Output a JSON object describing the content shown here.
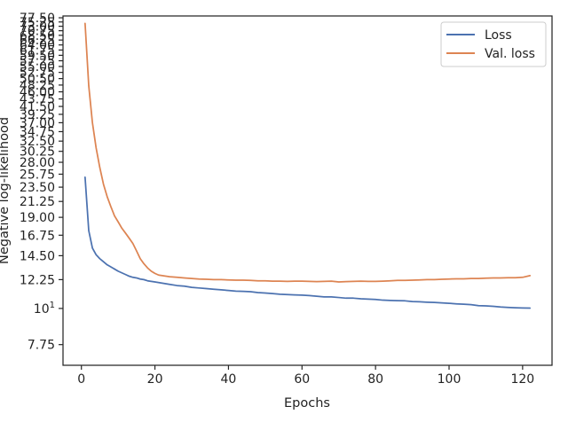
{
  "chart_data": {
    "type": "line",
    "title": "",
    "xlabel": "Epochs",
    "ylabel": "Negative log-likelihood",
    "xlim": [
      -5,
      128
    ],
    "ylim": [
      6.7,
      78.5
    ],
    "yscale": "log",
    "grid": false,
    "legend_position": "top-right",
    "x_ticks": [
      {
        "value": 0,
        "label": "0"
      },
      {
        "value": 20,
        "label": "20"
      },
      {
        "value": 40,
        "label": "40"
      },
      {
        "value": 60,
        "label": "60"
      },
      {
        "value": 80,
        "label": "80"
      },
      {
        "value": 100,
        "label": "100"
      },
      {
        "value": 120,
        "label": "120"
      }
    ],
    "y_ticks": [
      {
        "value": 7.75,
        "label": "7.75"
      },
      {
        "value": 10,
        "label": "10¹"
      },
      {
        "value": 12.25,
        "label": "12.25"
      },
      {
        "value": 14.5,
        "label": "14.50"
      },
      {
        "value": 16.75,
        "label": "16.75"
      },
      {
        "value": 19.0,
        "label": "19.00"
      },
      {
        "value": 21.25,
        "label": "21.25"
      },
      {
        "value": 23.5,
        "label": "23.50"
      },
      {
        "value": 25.75,
        "label": "25.75"
      },
      {
        "value": 28.0,
        "label": "28.00"
      },
      {
        "value": 30.25,
        "label": "30.25"
      },
      {
        "value": 32.5,
        "label": "32.50"
      },
      {
        "value": 34.75,
        "label": "34.75"
      },
      {
        "value": 37.0,
        "label": "37.00"
      },
      {
        "value": 39.25,
        "label": "39.25"
      },
      {
        "value": 41.5,
        "label": "41.50"
      },
      {
        "value": 43.75,
        "label": "43.75"
      },
      {
        "value": 46.0,
        "label": "46.00"
      },
      {
        "value": 48.25,
        "label": "48.25"
      },
      {
        "value": 50.5,
        "label": "50.50"
      },
      {
        "value": 52.75,
        "label": "52.75"
      },
      {
        "value": 55.0,
        "label": "55.00"
      },
      {
        "value": 57.25,
        "label": "57.25"
      },
      {
        "value": 59.5,
        "label": "59.50"
      },
      {
        "value": 61.75,
        "label": "61.75"
      },
      {
        "value": 64.0,
        "label": "64.00"
      },
      {
        "value": 66.25,
        "label": "66.25"
      },
      {
        "value": 68.5,
        "label": "68.50"
      },
      {
        "value": 70.75,
        "label": "70.75"
      },
      {
        "value": 73.0,
        "label": "73.00"
      },
      {
        "value": 75.25,
        "label": "75.25"
      },
      {
        "value": 77.5,
        "label": "77.50"
      }
    ],
    "series": [
      {
        "name": "Loss",
        "color": "#4c72b0",
        "points": [
          [
            1,
            25.2
          ],
          [
            2,
            17.3
          ],
          [
            3,
            15.3
          ],
          [
            4,
            14.6
          ],
          [
            5,
            14.2
          ],
          [
            6,
            13.9
          ],
          [
            7,
            13.6
          ],
          [
            8,
            13.4
          ],
          [
            9,
            13.2
          ],
          [
            10,
            13.0
          ],
          [
            11,
            12.85
          ],
          [
            12,
            12.7
          ],
          [
            13,
            12.55
          ],
          [
            14,
            12.45
          ],
          [
            15,
            12.4
          ],
          [
            16,
            12.3
          ],
          [
            17,
            12.25
          ],
          [
            18,
            12.15
          ],
          [
            19,
            12.1
          ],
          [
            20,
            12.05
          ],
          [
            22,
            11.95
          ],
          [
            24,
            11.85
          ],
          [
            26,
            11.75
          ],
          [
            28,
            11.7
          ],
          [
            30,
            11.6
          ],
          [
            32,
            11.55
          ],
          [
            34,
            11.5
          ],
          [
            36,
            11.45
          ],
          [
            38,
            11.4
          ],
          [
            40,
            11.35
          ],
          [
            42,
            11.3
          ],
          [
            44,
            11.28
          ],
          [
            46,
            11.25
          ],
          [
            48,
            11.18
          ],
          [
            50,
            11.15
          ],
          [
            52,
            11.1
          ],
          [
            54,
            11.05
          ],
          [
            56,
            11.03
          ],
          [
            58,
            11.0
          ],
          [
            60,
            10.98
          ],
          [
            62,
            10.95
          ],
          [
            64,
            10.9
          ],
          [
            66,
            10.85
          ],
          [
            68,
            10.85
          ],
          [
            70,
            10.8
          ],
          [
            72,
            10.75
          ],
          [
            74,
            10.75
          ],
          [
            76,
            10.7
          ],
          [
            78,
            10.68
          ],
          [
            80,
            10.65
          ],
          [
            82,
            10.6
          ],
          [
            84,
            10.58
          ],
          [
            86,
            10.56
          ],
          [
            88,
            10.55
          ],
          [
            90,
            10.5
          ],
          [
            92,
            10.48
          ],
          [
            94,
            10.45
          ],
          [
            96,
            10.43
          ],
          [
            98,
            10.4
          ],
          [
            100,
            10.37
          ],
          [
            102,
            10.33
          ],
          [
            104,
            10.3
          ],
          [
            106,
            10.27
          ],
          [
            108,
            10.2
          ],
          [
            110,
            10.18
          ],
          [
            112,
            10.15
          ],
          [
            114,
            10.1
          ],
          [
            116,
            10.07
          ],
          [
            118,
            10.05
          ],
          [
            120,
            10.03
          ],
          [
            122,
            10.02
          ]
        ]
      },
      {
        "name": "Val. loss",
        "color": "#dd8452",
        "points": [
          [
            1,
            74.5
          ],
          [
            2,
            48.0
          ],
          [
            3,
            37.0
          ],
          [
            4,
            31.0
          ],
          [
            5,
            27.0
          ],
          [
            6,
            24.0
          ],
          [
            7,
            22.0
          ],
          [
            8,
            20.5
          ],
          [
            9,
            19.2
          ],
          [
            10,
            18.4
          ],
          [
            11,
            17.6
          ],
          [
            12,
            17.0
          ],
          [
            13,
            16.4
          ],
          [
            14,
            15.8
          ],
          [
            15,
            15.0
          ],
          [
            16,
            14.2
          ],
          [
            17,
            13.7
          ],
          [
            18,
            13.3
          ],
          [
            19,
            13.0
          ],
          [
            20,
            12.8
          ],
          [
            21,
            12.65
          ],
          [
            22,
            12.6
          ],
          [
            23,
            12.55
          ],
          [
            24,
            12.5
          ],
          [
            26,
            12.45
          ],
          [
            28,
            12.4
          ],
          [
            30,
            12.35
          ],
          [
            32,
            12.3
          ],
          [
            34,
            12.28
          ],
          [
            36,
            12.25
          ],
          [
            38,
            12.25
          ],
          [
            40,
            12.22
          ],
          [
            42,
            12.2
          ],
          [
            44,
            12.2
          ],
          [
            46,
            12.18
          ],
          [
            48,
            12.15
          ],
          [
            50,
            12.15
          ],
          [
            52,
            12.12
          ],
          [
            54,
            12.12
          ],
          [
            56,
            12.1
          ],
          [
            58,
            12.12
          ],
          [
            60,
            12.12
          ],
          [
            62,
            12.1
          ],
          [
            64,
            12.08
          ],
          [
            66,
            12.1
          ],
          [
            68,
            12.12
          ],
          [
            70,
            12.05
          ],
          [
            72,
            12.08
          ],
          [
            74,
            12.1
          ],
          [
            76,
            12.12
          ],
          [
            78,
            12.1
          ],
          [
            80,
            12.1
          ],
          [
            82,
            12.12
          ],
          [
            84,
            12.15
          ],
          [
            86,
            12.18
          ],
          [
            88,
            12.18
          ],
          [
            90,
            12.2
          ],
          [
            92,
            12.22
          ],
          [
            94,
            12.25
          ],
          [
            96,
            12.25
          ],
          [
            98,
            12.28
          ],
          [
            100,
            12.3
          ],
          [
            102,
            12.32
          ],
          [
            104,
            12.32
          ],
          [
            106,
            12.35
          ],
          [
            108,
            12.35
          ],
          [
            110,
            12.38
          ],
          [
            112,
            12.4
          ],
          [
            114,
            12.4
          ],
          [
            116,
            12.42
          ],
          [
            118,
            12.42
          ],
          [
            120,
            12.45
          ],
          [
            122,
            12.6
          ]
        ]
      }
    ]
  }
}
